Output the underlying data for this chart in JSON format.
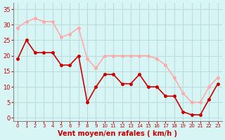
{
  "x": [
    0,
    1,
    2,
    3,
    4,
    5,
    6,
    7,
    8,
    9,
    10,
    11,
    12,
    13,
    14,
    15,
    16,
    17,
    18,
    19,
    20,
    21,
    22,
    23
  ],
  "wind_avg": [
    19,
    25,
    21,
    21,
    21,
    17,
    17,
    20,
    5,
    10,
    14,
    14,
    11,
    11,
    14,
    10,
    10,
    7,
    7,
    2,
    1,
    1,
    6,
    11
  ],
  "wind_gust": [
    29,
    31,
    32,
    31,
    31,
    26,
    27,
    29,
    19,
    16,
    20,
    20,
    20,
    20,
    20,
    20,
    19,
    17,
    13,
    8,
    5,
    5,
    10,
    13
  ],
  "avg_color": "#cc0000",
  "gust_color": "#ffaaaa",
  "bg_color": "#d8f5f5",
  "grid_color": "#bbdddd",
  "xlabel": "Vent moyen/en rafales ( km/h )",
  "xlabel_color": "#cc0000",
  "ylabel_color": "#cc0000",
  "tick_color": "#cc0000",
  "yticks": [
    0,
    5,
    10,
    15,
    20,
    25,
    30,
    35
  ],
  "ylim": [
    -1,
    37
  ],
  "xlim": [
    -0.5,
    23.5
  ]
}
